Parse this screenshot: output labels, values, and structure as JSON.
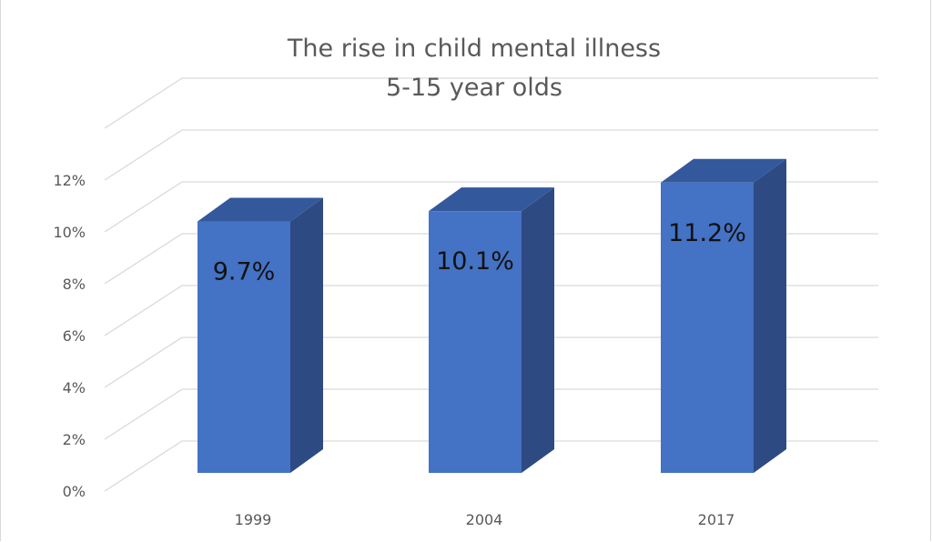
{
  "chart_data": {
    "type": "bar",
    "style": "3d-column",
    "title": [
      "The rise in child mental illness",
      "5-15 year olds"
    ],
    "categories": [
      "1999",
      "2004",
      "2017"
    ],
    "values": [
      9.7,
      10.1,
      11.2
    ],
    "data_labels": [
      "9.7%",
      "10.1%",
      "11.2%"
    ],
    "ylim": [
      0,
      14
    ],
    "y_ticks": [
      0,
      2,
      4,
      6,
      8,
      10,
      12
    ],
    "y_tick_labels": [
      "0%",
      "2%",
      "4%",
      "6%",
      "8%",
      "10%",
      "12%"
    ],
    "grid": true,
    "colors": {
      "front": "#4472c4",
      "side": "#2e4a82",
      "top": "#34589c",
      "grid": "#d9d9d9",
      "text": "#595959"
    }
  }
}
